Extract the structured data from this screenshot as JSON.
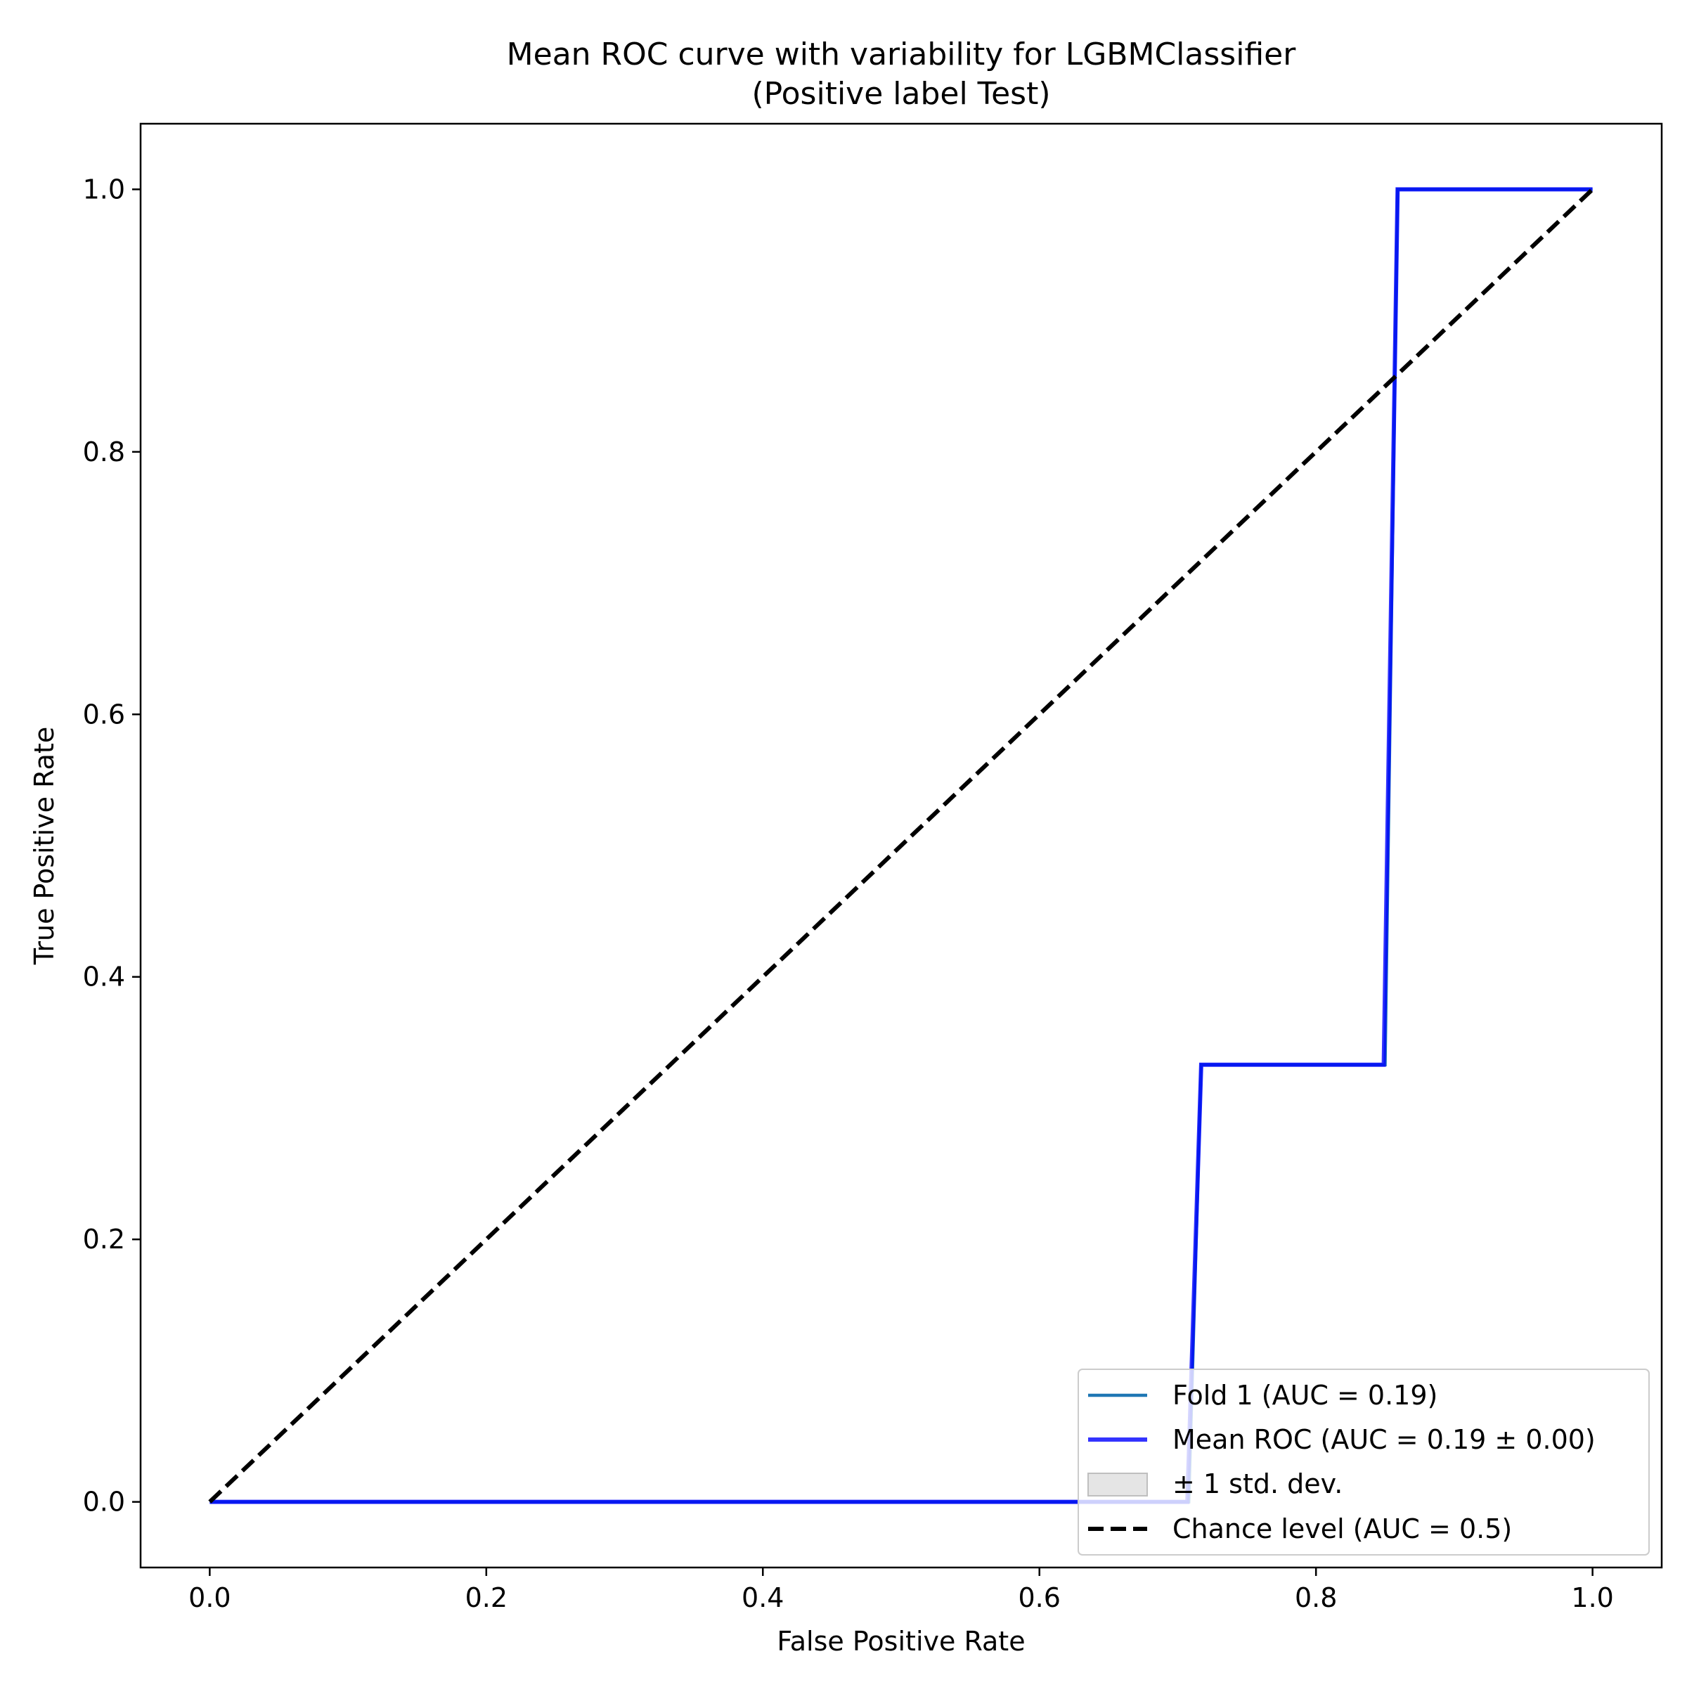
{
  "chart_data": {
    "type": "line",
    "title": "Mean ROC curve with variability for LGBMClassifier",
    "subtitle": "(Positive label Test)",
    "xlabel": "False Positive Rate",
    "ylabel": "True Positive Rate",
    "xlim": [
      -0.05,
      1.05
    ],
    "ylim": [
      -0.05,
      1.05
    ],
    "xticks": [
      0.0,
      0.2,
      0.4,
      0.6,
      0.8,
      1.0
    ],
    "yticks": [
      0.0,
      0.2,
      0.4,
      0.6,
      0.8,
      1.0
    ],
    "xtick_labels": [
      "0.0",
      "0.2",
      "0.4",
      "0.6",
      "0.8",
      "1.0"
    ],
    "ytick_labels": [
      "0.0",
      "0.2",
      "0.4",
      "0.6",
      "0.8",
      "1.0"
    ],
    "grid": false,
    "legend_position": "lower right",
    "series": [
      {
        "name": "Fold 1 (AUC = 0.19)",
        "color": "#1f77b4",
        "style": "solid",
        "x": [
          0.0,
          0.708,
          0.717,
          0.85,
          0.859,
          1.0
        ],
        "y": [
          0.0,
          0.0,
          0.333,
          0.333,
          1.0,
          1.0
        ]
      },
      {
        "name": "Mean ROC (AUC = 0.19 ± 0.00)",
        "color": "#0000ff",
        "style": "solid",
        "x": [
          0.0,
          0.707,
          0.717,
          0.849,
          0.859,
          1.0
        ],
        "y": [
          0.0,
          0.0,
          0.333,
          0.333,
          1.0,
          1.0
        ]
      },
      {
        "name": "± 1 std. dev.",
        "color": "#bfbfbf",
        "style": "band",
        "x": [],
        "y": []
      },
      {
        "name": "Chance level (AUC = 0.5)",
        "color": "#000000",
        "style": "dashed",
        "x": [
          0.0,
          1.0
        ],
        "y": [
          0.0,
          1.0
        ]
      }
    ]
  }
}
